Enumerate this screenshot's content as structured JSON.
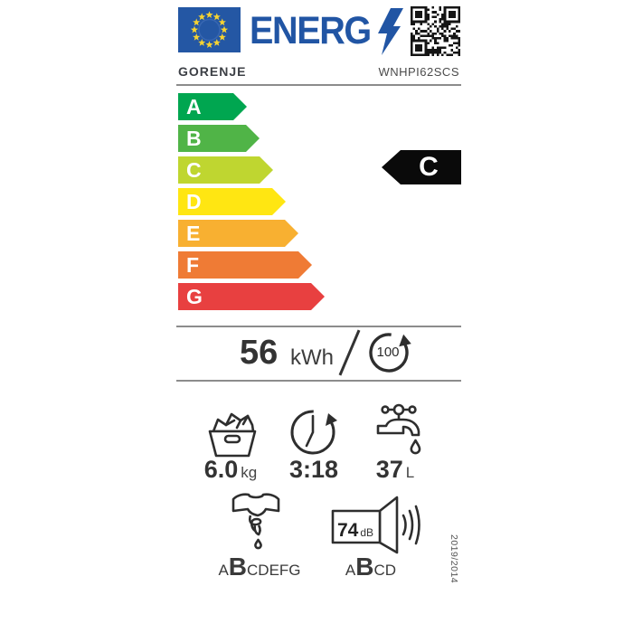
{
  "label": {
    "logo_text": "ENERG",
    "brand": "GORENJE",
    "model": "WNHPI62SCS",
    "rating": "C",
    "scale": {
      "classes": [
        {
          "label": "A",
          "color": "#00a650"
        },
        {
          "label": "B",
          "color": "#50b447"
        },
        {
          "label": "C",
          "color": "#bfd630"
        },
        {
          "label": "D",
          "color": "#ffe612"
        },
        {
          "label": "E",
          "color": "#f8b031"
        },
        {
          "label": "F",
          "color": "#ef7b35"
        },
        {
          "label": "G",
          "color": "#e84040"
        }
      ]
    },
    "energy": {
      "value": "56",
      "unit": "kWh",
      "cycles": "100"
    },
    "capacity": {
      "value": "6.0",
      "unit": "kg"
    },
    "duration": {
      "value": "3:18"
    },
    "water": {
      "value": "37",
      "unit": "L"
    },
    "spin_class": {
      "pre": "A",
      "current": "B",
      "post": "CDEFG"
    },
    "noise": {
      "value": "74",
      "unit": "dB",
      "pre": "A",
      "current": "B",
      "post": "CD"
    },
    "regulation": "2019/2014",
    "colors": {
      "eu_blue": "#2155a4",
      "flag_blue": "#2457a4",
      "star_yellow": "#f6d331",
      "rating_black": "#0a0a0a",
      "separator_gray": "#8c8c8c"
    }
  }
}
